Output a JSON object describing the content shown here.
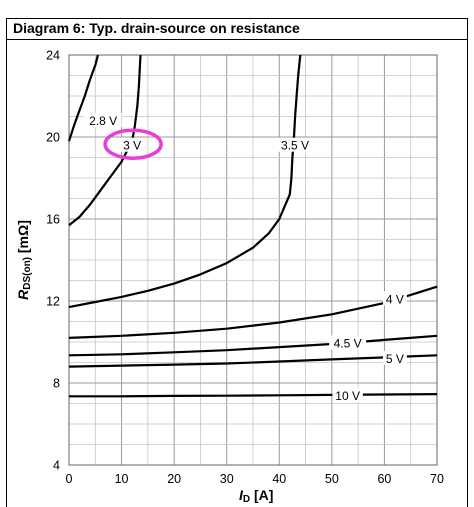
{
  "title": "Diagram 6: Typ. drain-source on resistance",
  "chart_data": {
    "type": "line",
    "title": "Diagram 6: Typ. drain-source on resistance",
    "xlabel": "I_D [A]",
    "ylabel": "R_DS(on) [mΩ]",
    "xlim": [
      0,
      70
    ],
    "ylim": [
      4,
      24
    ],
    "x_ticks": [
      "0",
      "10",
      "20",
      "30",
      "40",
      "50",
      "60",
      "70"
    ],
    "y_ticks": [
      "4",
      "8",
      "12",
      "16",
      "20",
      "24"
    ],
    "grid": true,
    "highlight": {
      "label": "3 V",
      "color": "#e83ed8"
    },
    "series": [
      {
        "name": "2.8 V",
        "label_at": [
          6.5,
          20.8
        ],
        "points": [
          [
            0,
            19.8
          ],
          [
            1,
            20.6
          ],
          [
            2,
            21.3
          ],
          [
            3,
            22.0
          ],
          [
            4,
            22.8
          ],
          [
            5,
            23.5
          ],
          [
            5.5,
            24.0
          ]
        ]
      },
      {
        "name": "3 V",
        "label_at": [
          12,
          19.6
        ],
        "points": [
          [
            0,
            15.7
          ],
          [
            2,
            16.1
          ],
          [
            4,
            16.7
          ],
          [
            6,
            17.4
          ],
          [
            8,
            18.1
          ],
          [
            10,
            18.8
          ],
          [
            11,
            19.3
          ],
          [
            12,
            19.8
          ],
          [
            12.5,
            20.5
          ],
          [
            13,
            21.5
          ],
          [
            13.3,
            22.5
          ],
          [
            13.6,
            24.0
          ]
        ]
      },
      {
        "name": "3.5 V",
        "label_at": [
          43,
          19.6
        ],
        "points": [
          [
            0,
            11.7
          ],
          [
            5,
            11.95
          ],
          [
            10,
            12.2
          ],
          [
            15,
            12.5
          ],
          [
            20,
            12.85
          ],
          [
            25,
            13.3
          ],
          [
            30,
            13.85
          ],
          [
            35,
            14.6
          ],
          [
            38,
            15.3
          ],
          [
            40,
            16.0
          ],
          [
            41,
            16.6
          ],
          [
            42,
            17.2
          ],
          [
            42.3,
            18.0
          ],
          [
            42.5,
            19.0
          ],
          [
            42.8,
            20.0
          ],
          [
            43,
            21.0
          ],
          [
            43.3,
            22.0
          ],
          [
            43.6,
            23.0
          ],
          [
            44,
            24.0
          ]
        ]
      },
      {
        "name": "4 V",
        "label_at": [
          62,
          12.1
        ],
        "points": [
          [
            0,
            10.2
          ],
          [
            10,
            10.3
          ],
          [
            20,
            10.45
          ],
          [
            30,
            10.65
          ],
          [
            40,
            10.95
          ],
          [
            50,
            11.35
          ],
          [
            60,
            11.9
          ],
          [
            65,
            12.3
          ],
          [
            70,
            12.7
          ]
        ]
      },
      {
        "name": "4.5 V",
        "label_at": [
          53,
          9.95
        ],
        "points": [
          [
            0,
            9.35
          ],
          [
            10,
            9.4
          ],
          [
            20,
            9.5
          ],
          [
            30,
            9.6
          ],
          [
            40,
            9.75
          ],
          [
            50,
            9.9
          ],
          [
            60,
            10.1
          ],
          [
            70,
            10.3
          ]
        ]
      },
      {
        "name": "5 V",
        "label_at": [
          62,
          9.2
        ],
        "points": [
          [
            0,
            8.8
          ],
          [
            10,
            8.85
          ],
          [
            20,
            8.9
          ],
          [
            30,
            8.95
          ],
          [
            40,
            9.05
          ],
          [
            50,
            9.15
          ],
          [
            60,
            9.25
          ],
          [
            70,
            9.35
          ]
        ]
      },
      {
        "name": "10 V",
        "label_at": [
          53,
          7.4
        ],
        "points": [
          [
            0,
            7.35
          ],
          [
            10,
            7.35
          ],
          [
            20,
            7.37
          ],
          [
            30,
            7.38
          ],
          [
            40,
            7.4
          ],
          [
            50,
            7.42
          ],
          [
            60,
            7.44
          ],
          [
            70,
            7.46
          ]
        ]
      }
    ]
  }
}
